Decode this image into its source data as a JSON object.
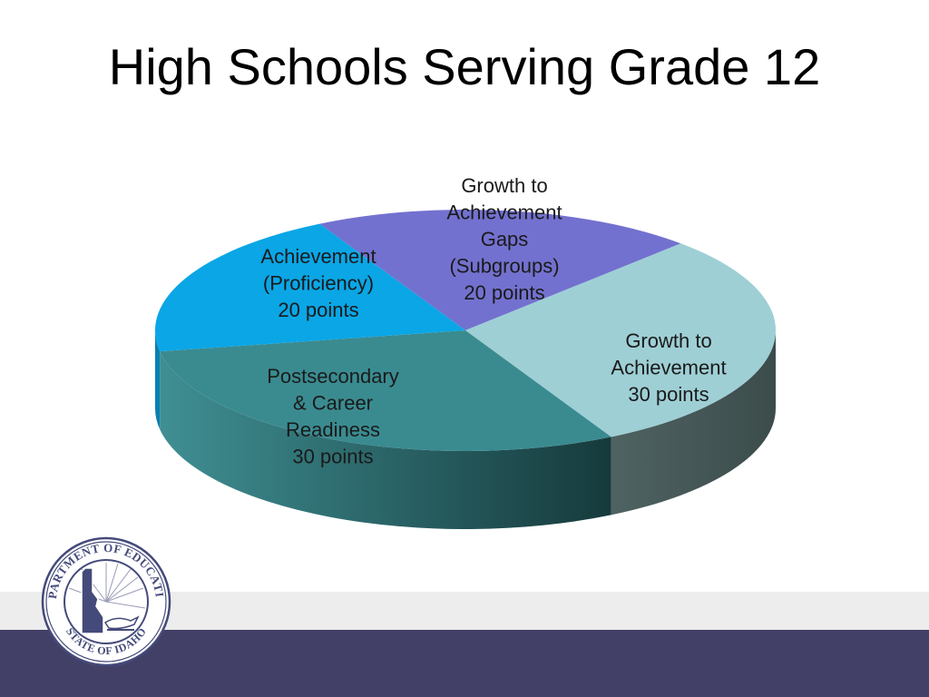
{
  "slide": {
    "title": "High Schools Serving Grade 12"
  },
  "colors": {
    "band_light": "#ededed",
    "band_dark": "#434068"
  },
  "chart_data": {
    "type": "pie",
    "title": "",
    "unit": "points",
    "slices": [
      {
        "label_lines": [
          "Growth to",
          "Achievement",
          "Gaps",
          "(Subgroups)",
          "20 points"
        ],
        "value": 20,
        "color_top": "#7371cf",
        "color_side": "#4e4c98"
      },
      {
        "label_lines": [
          "Growth to",
          "Achievement",
          "30 points"
        ],
        "value": 30,
        "color_top": "#9ecfd5",
        "color_side": "#465a59"
      },
      {
        "label_lines": [
          "Postsecondary",
          "& Career",
          "Readiness",
          "30 points"
        ],
        "value": 30,
        "color_top": "#3a8b90",
        "color_side": "#2a6a6e"
      },
      {
        "label_lines": [
          "Achievement",
          "(Proficiency)",
          "20 points"
        ],
        "value": 20,
        "color_top": "#0aa6e6",
        "color_side": "#0a7fb0"
      }
    ]
  },
  "logo": {
    "top_text": "DEPARTMENT OF EDUCATION",
    "bottom_text": "STATE OF IDAHO",
    "icon": "idaho-state-seal-icon"
  }
}
